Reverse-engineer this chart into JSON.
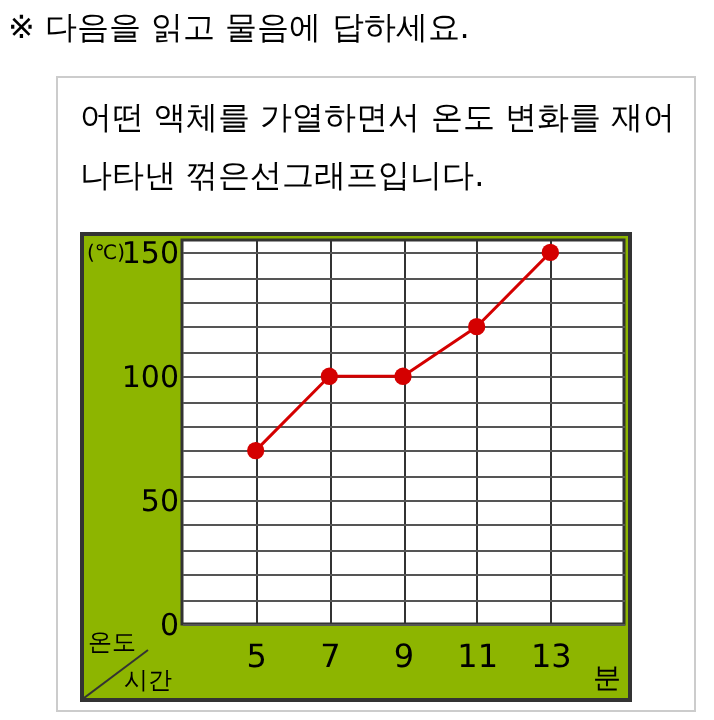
{
  "chart_data": {
    "type": "line",
    "title": "※ 다음을 읽고 물음에 답하세요.",
    "subtitle": "어떤 액체를 가열하면서 온도 변화를 재어 나타낸 꺾은선그래프입니다.",
    "xlabel": "분",
    "ylabel": "(℃)",
    "annotations": [
      "온도",
      "시간"
    ],
    "categories": [
      "5",
      "7",
      "9",
      "11",
      "13"
    ],
    "series": [
      {
        "color": "#d40000",
        "values": [
          70,
          100,
          100,
          120,
          150
        ]
      }
    ],
    "ylim": [
      0,
      155
    ],
    "yticks": [
      0,
      {
        "value": 10,
        "label": null
      },
      {
        "value": 20,
        "label": null
      },
      {
        "value": 30,
        "label": null
      },
      {
        "value": 40,
        "label": null
      },
      50,
      {
        "value": 60,
        "label": null
      },
      {
        "value": 70,
        "label": null
      },
      {
        "value": 80,
        "label": null
      },
      {
        "value": 90,
        "label": null
      },
      100,
      {
        "value": 110,
        "label": null
      },
      {
        "value": 120,
        "label": null
      },
      {
        "value": 130,
        "label": null
      },
      {
        "value": 140,
        "label": null
      },
      150
    ],
    "grid": true,
    "marker": "circle",
    "line_style": "solid"
  }
}
